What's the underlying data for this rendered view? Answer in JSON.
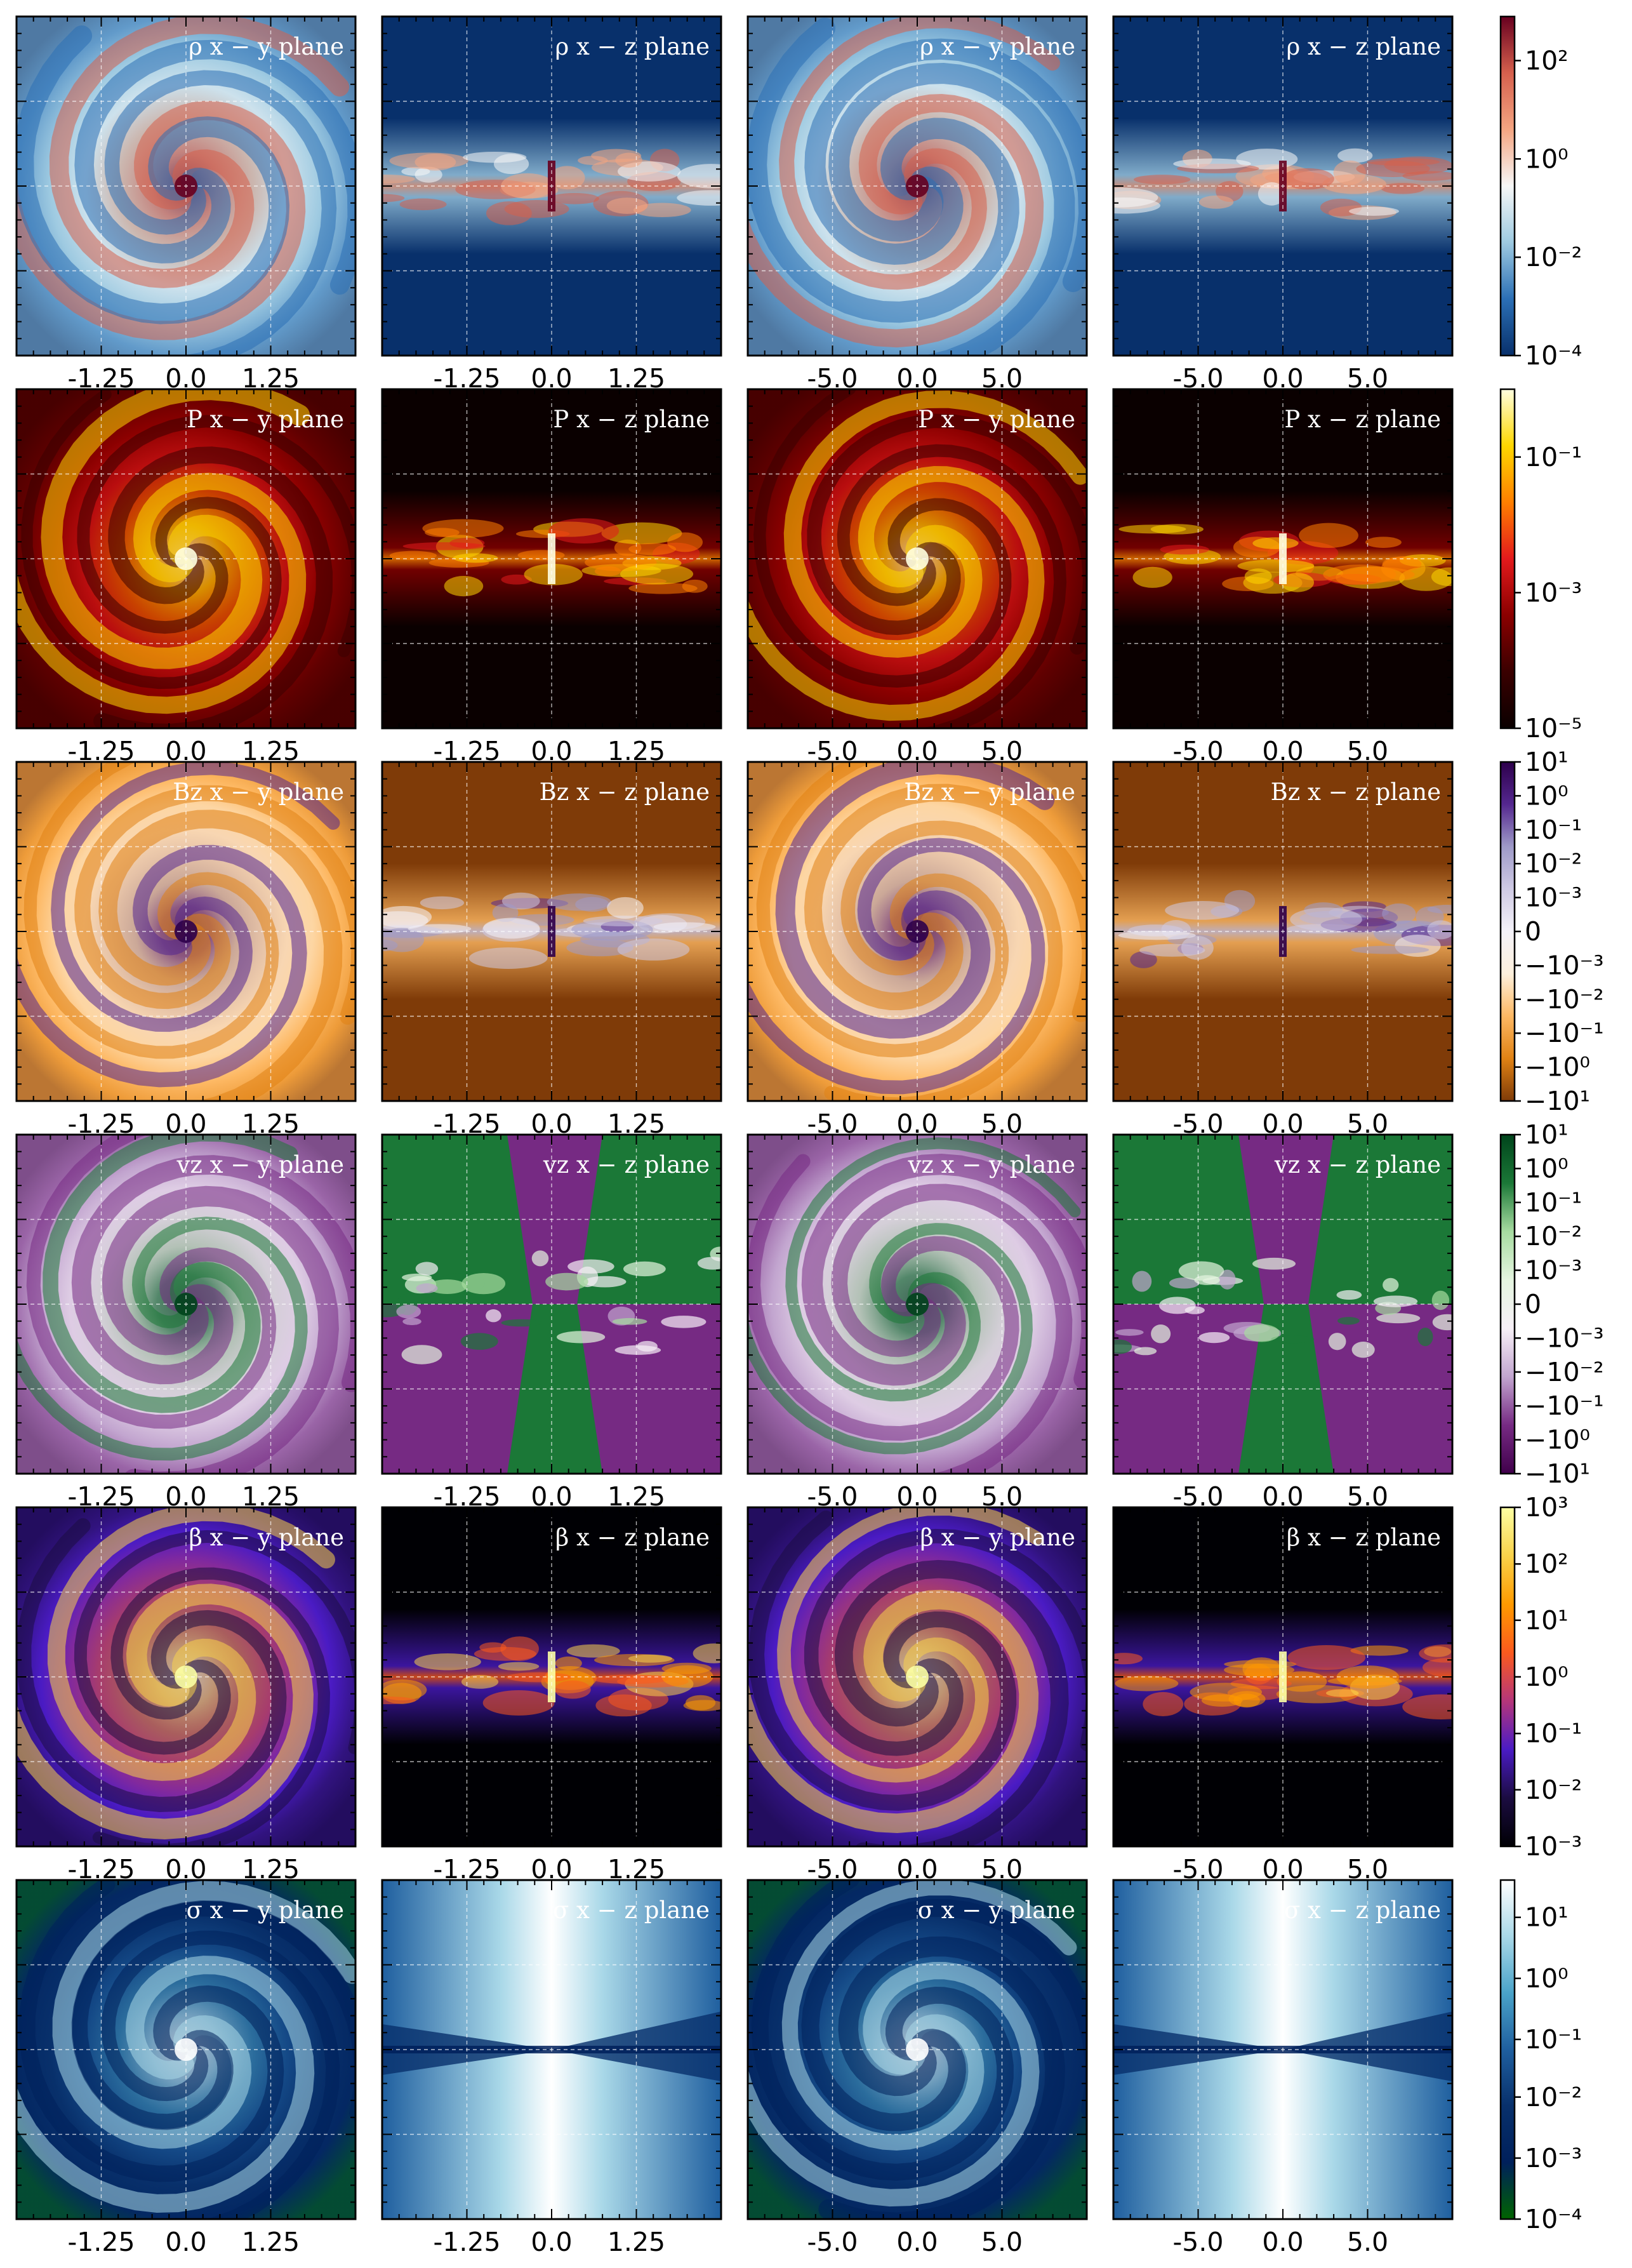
{
  "figure": {
    "rows": [
      {
        "quantity": "density",
        "colormap": [
          "#08306b",
          "#2b6fb5",
          "#9ecae1",
          "#f7f7f7",
          "#f4a582",
          "#d6604d",
          "#67001f"
        ],
        "panels": [
          {
            "title": "ρ x − y plane",
            "xticks": [
              "-1.25",
              "0.0",
              "1.25"
            ],
            "pattern": "disk",
            "seed": 1
          },
          {
            "title": "ρ x − z plane",
            "xticks": [
              "-1.25",
              "0.0",
              "1.25"
            ],
            "pattern": "edge",
            "seed": 2
          },
          {
            "title": "ρ x − y plane",
            "xticks": [
              "-5.0",
              "0.0",
              "5.0"
            ],
            "pattern": "disk",
            "seed": 3
          },
          {
            "title": "ρ x − z plane",
            "xticks": [
              "-5.0",
              "0.0",
              "5.0"
            ],
            "pattern": "edge",
            "seed": 4
          }
        ],
        "colorbar": {
          "ticks": [
            "10²",
            "10⁰",
            "10⁻²",
            "10⁻⁴"
          ],
          "fractions": [
            0.13,
            0.42,
            0.71,
            1.0
          ]
        }
      },
      {
        "quantity": "pressure",
        "colormap": [
          "#0a0000",
          "#3a0000",
          "#8b0000",
          "#e31a1c",
          "#ff7f00",
          "#ffd700",
          "#ffffe0"
        ],
        "panels": [
          {
            "title": "P x − y plane",
            "xticks": [
              "-1.25",
              "0.0",
              "1.25"
            ],
            "pattern": "disk",
            "seed": 5
          },
          {
            "title": "P x − z plane",
            "xticks": [
              "-1.25",
              "0.0",
              "1.25"
            ],
            "pattern": "edge",
            "seed": 6
          },
          {
            "title": "P x − y plane",
            "xticks": [
              "-5.0",
              "0.0",
              "5.0"
            ],
            "pattern": "disk",
            "seed": 7
          },
          {
            "title": "P x − z plane",
            "xticks": [
              "-5.0",
              "0.0",
              "5.0"
            ],
            "pattern": "edge",
            "seed": 8
          }
        ],
        "colorbar": {
          "ticks": [
            "10⁻¹",
            "10⁻³",
            "10⁻⁵"
          ],
          "fractions": [
            0.2,
            0.6,
            1.0
          ]
        }
      },
      {
        "quantity": "magnetic field z",
        "colormap": [
          "#7f3b08",
          "#e08214",
          "#fdb863",
          "#fdf0dc",
          "#f4f2f9",
          "#cfcae4",
          "#9e9ac8",
          "#54278f",
          "#2d004b"
        ],
        "panels": [
          {
            "title": "Bz x − y plane",
            "xticks": [
              "-1.25",
              "0.0",
              "1.25"
            ],
            "pattern": "disk",
            "seed": 9
          },
          {
            "title": "Bz x − z plane",
            "xticks": [
              "-1.25",
              "0.0",
              "1.25"
            ],
            "pattern": "edge",
            "seed": 10
          },
          {
            "title": "Bz x − y plane",
            "xticks": [
              "-5.0",
              "0.0",
              "5.0"
            ],
            "pattern": "disk",
            "seed": 11
          },
          {
            "title": "Bz x − z plane",
            "xticks": [
              "-5.0",
              "0.0",
              "5.0"
            ],
            "pattern": "edge",
            "seed": 12
          }
        ],
        "colorbar": {
          "ticks": [
            "10¹",
            "10⁰",
            "10⁻¹",
            "10⁻²",
            "10⁻³",
            "0",
            "−10⁻³",
            "−10⁻²",
            "−10⁻¹",
            "−10⁰",
            "−10¹"
          ],
          "fractions": [
            0,
            0.1,
            0.2,
            0.3,
            0.4,
            0.5,
            0.6,
            0.7,
            0.8,
            0.9,
            1.0
          ]
        }
      },
      {
        "quantity": "velocity z",
        "colormap": [
          "#40004b",
          "#762a83",
          "#c2a5cf",
          "#f7f0f7",
          "#e5f5e0",
          "#a6dba0",
          "#1b7837",
          "#00441b"
        ],
        "panels": [
          {
            "title": "vz x − y plane",
            "xticks": [
              "-1.25",
              "0.0",
              "1.25"
            ],
            "pattern": "disk",
            "seed": 13
          },
          {
            "title": "vz x − z plane",
            "xticks": [
              "-1.25",
              "0.0",
              "1.25"
            ],
            "pattern": "quad",
            "seed": 14
          },
          {
            "title": "vz x − y plane",
            "xticks": [
              "-5.0",
              "0.0",
              "5.0"
            ],
            "pattern": "disk",
            "seed": 15
          },
          {
            "title": "vz x − z plane",
            "xticks": [
              "-5.0",
              "0.0",
              "5.0"
            ],
            "pattern": "quad",
            "seed": 16
          }
        ],
        "colorbar": {
          "ticks": [
            "10¹",
            "10⁰",
            "10⁻¹",
            "10⁻²",
            "10⁻³",
            "0",
            "−10⁻³",
            "−10⁻²",
            "−10⁻¹",
            "−10⁰",
            "−10¹"
          ],
          "fractions": [
            0,
            0.1,
            0.2,
            0.3,
            0.4,
            0.5,
            0.6,
            0.7,
            0.8,
            0.9,
            1.0
          ]
        }
      },
      {
        "quantity": "plasma beta",
        "colormap": [
          "#000004",
          "#1b0c41",
          "#4a1bc4",
          "#b5367a",
          "#fb5a1e",
          "#ff9a00",
          "#f9d24a",
          "#fcffa4"
        ],
        "panels": [
          {
            "title": "β x − y plane",
            "xticks": [
              "-1.25",
              "0.0",
              "1.25"
            ],
            "pattern": "disk",
            "seed": 17
          },
          {
            "title": "β x − z plane",
            "xticks": [
              "-1.25",
              "0.0",
              "1.25"
            ],
            "pattern": "edge",
            "seed": 18
          },
          {
            "title": "β x − y plane",
            "xticks": [
              "-5.0",
              "0.0",
              "5.0"
            ],
            "pattern": "disk",
            "seed": 19
          },
          {
            "title": "β x − z plane",
            "xticks": [
              "-5.0",
              "0.0",
              "5.0"
            ],
            "pattern": "edge",
            "seed": 20
          }
        ],
        "colorbar": {
          "ticks": [
            "10³",
            "10²",
            "10¹",
            "10⁰",
            "10⁻¹",
            "10⁻²",
            "10⁻³"
          ],
          "fractions": [
            0,
            0.167,
            0.333,
            0.5,
            0.667,
            0.833,
            1.0
          ]
        }
      },
      {
        "quantity": "magnetization",
        "colormap": [
          "#006400",
          "#00205b",
          "#08306b",
          "#1f5f9f",
          "#4aa3c9",
          "#a9d8e8",
          "#ffffff"
        ],
        "panels": [
          {
            "title": "σ x − y plane",
            "xticks": [
              "-1.25",
              "0.0",
              "1.25"
            ],
            "pattern": "disk",
            "seed": 21
          },
          {
            "title": "σ x − z plane",
            "xticks": [
              "-1.25",
              "0.0",
              "1.25"
            ],
            "pattern": "cone",
            "seed": 22
          },
          {
            "title": "σ x − y plane",
            "xticks": [
              "-5.0",
              "0.0",
              "5.0"
            ],
            "pattern": "disk",
            "seed": 23
          },
          {
            "title": "σ x − z plane",
            "xticks": [
              "-5.0",
              "0.0",
              "5.0"
            ],
            "pattern": "cone",
            "seed": 24
          }
        ],
        "colorbar": {
          "ticks": [
            "10¹",
            "10⁰",
            "10⁻¹",
            "10⁻²",
            "10⁻³",
            "10⁻⁴"
          ],
          "fractions": [
            0.11,
            0.29,
            0.47,
            0.64,
            0.82,
            1.0
          ]
        }
      }
    ]
  },
  "chart_data": {
    "type": "heatmap",
    "title": "",
    "xlabel": "",
    "ylabel": "",
    "grid": true,
    "legend": "colorbar-right",
    "rows": [
      {
        "quantity": "ρ",
        "scale": "log",
        "range": [
          "10⁻⁴",
          "10²"
        ]
      },
      {
        "quantity": "P",
        "scale": "log",
        "range": [
          "10⁻⁵",
          "10⁻¹"
        ]
      },
      {
        "quantity": "Bz",
        "scale": "symlog",
        "range": [
          "−10¹",
          "10¹"
        ]
      },
      {
        "quantity": "vz",
        "scale": "symlog",
        "range": [
          "−10¹",
          "10¹"
        ]
      },
      {
        "quantity": "β",
        "scale": "log",
        "range": [
          "10⁻³",
          "10³"
        ]
      },
      {
        "quantity": "σ",
        "scale": "log",
        "range": [
          "10⁻⁴",
          "10¹"
        ]
      }
    ],
    "columns": [
      {
        "plane": "x − y",
        "x": [
          -1.25,
          0.0,
          1.25
        ]
      },
      {
        "plane": "x − z",
        "x": [
          -1.25,
          0.0,
          1.25
        ]
      },
      {
        "plane": "x − y",
        "x": [
          -5.0,
          0.0,
          5.0
        ]
      },
      {
        "plane": "x − z",
        "x": [
          -5.0,
          0.0,
          5.0
        ]
      }
    ]
  }
}
